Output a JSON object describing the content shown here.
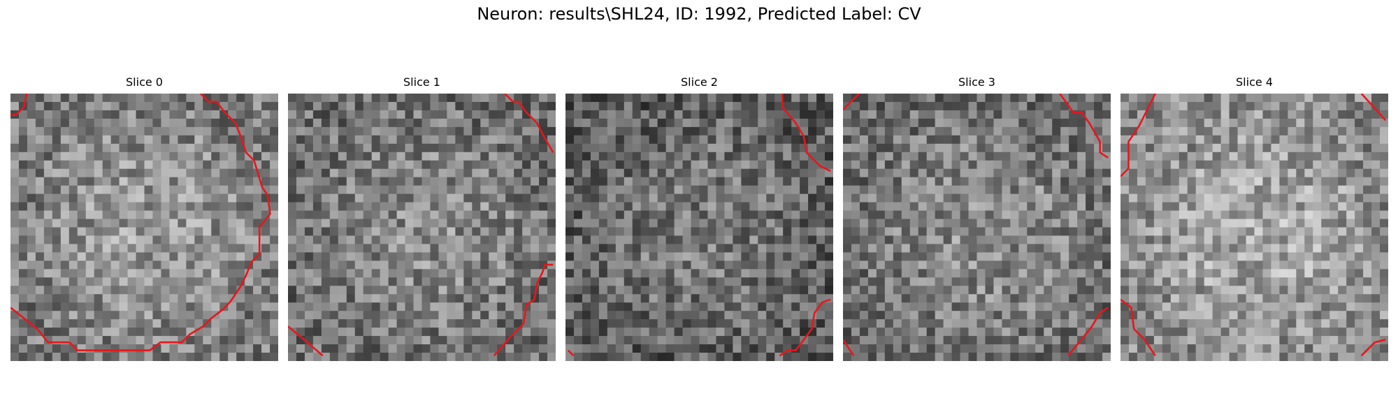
{
  "figure": {
    "title": "Neuron: results\\SHL24, ID: 1992, Predicted Label: CV"
  },
  "panels": [
    {
      "title": "Slice 0",
      "seed": 11,
      "base": 0.6,
      "contour": [
        [
          [
            0.0,
            0.08
          ],
          [
            0.02,
            0.08
          ],
          [
            0.05,
            0.05
          ],
          [
            0.06,
            0.0
          ]
        ],
        [
          [
            0.71,
            0.0
          ],
          [
            0.74,
            0.03
          ],
          [
            0.77,
            0.03
          ],
          [
            0.8,
            0.07
          ],
          [
            0.84,
            0.11
          ],
          [
            0.86,
            0.16
          ],
          [
            0.88,
            0.22
          ],
          [
            0.91,
            0.25
          ],
          [
            0.94,
            0.35
          ],
          [
            0.96,
            0.38
          ],
          [
            0.97,
            0.45
          ],
          [
            0.93,
            0.5
          ],
          [
            0.93,
            0.6
          ],
          [
            0.9,
            0.63
          ],
          [
            0.88,
            0.68
          ],
          [
            0.86,
            0.72
          ],
          [
            0.82,
            0.78
          ],
          [
            0.79,
            0.81
          ],
          [
            0.75,
            0.84
          ],
          [
            0.72,
            0.87
          ],
          [
            0.67,
            0.9
          ],
          [
            0.64,
            0.93
          ],
          [
            0.56,
            0.93
          ],
          [
            0.52,
            0.96
          ],
          [
            0.25,
            0.96
          ],
          [
            0.22,
            0.93
          ],
          [
            0.14,
            0.93
          ],
          [
            0.1,
            0.88
          ],
          [
            0.0,
            0.8
          ]
        ]
      ]
    },
    {
      "title": "Slice 1",
      "seed": 23,
      "base": 0.55,
      "contour": [
        [
          [
            0.81,
            0.0
          ],
          [
            0.84,
            0.03
          ],
          [
            0.86,
            0.03
          ],
          [
            0.89,
            0.07
          ],
          [
            0.93,
            0.11
          ],
          [
            0.95,
            0.15
          ],
          [
            0.99,
            0.22
          ]
        ],
        [
          [
            0.0,
            0.87
          ],
          [
            0.06,
            0.92
          ],
          [
            0.13,
            0.98
          ]
        ],
        [
          [
            0.77,
            0.98
          ],
          [
            0.83,
            0.91
          ],
          [
            0.88,
            0.86
          ],
          [
            0.89,
            0.79
          ],
          [
            0.92,
            0.77
          ],
          [
            0.93,
            0.71
          ],
          [
            0.95,
            0.67
          ],
          [
            0.96,
            0.64
          ],
          [
            0.99,
            0.64
          ]
        ]
      ]
    },
    {
      "title": "Slice 2",
      "seed": 37,
      "base": 0.48,
      "contour": [
        [
          [
            0.81,
            0.0
          ],
          [
            0.81,
            0.05
          ],
          [
            0.86,
            0.11
          ],
          [
            0.89,
            0.16
          ],
          [
            0.9,
            0.22
          ],
          [
            0.95,
            0.27
          ],
          [
            0.99,
            0.29
          ]
        ],
        [
          [
            0.01,
            0.96
          ],
          [
            0.03,
            0.98
          ]
        ],
        [
          [
            0.8,
            0.98
          ],
          [
            0.83,
            0.96
          ],
          [
            0.86,
            0.96
          ],
          [
            0.92,
            0.88
          ],
          [
            0.93,
            0.82
          ],
          [
            0.96,
            0.78
          ],
          [
            0.99,
            0.77
          ]
        ]
      ]
    },
    {
      "title": "Slice 3",
      "seed": 53,
      "base": 0.55,
      "contour": [
        [
          [
            0.0,
            0.06
          ],
          [
            0.06,
            0.0
          ]
        ],
        [
          [
            0.81,
            0.0
          ],
          [
            0.86,
            0.07
          ],
          [
            0.89,
            0.07
          ],
          [
            0.92,
            0.11
          ],
          [
            0.96,
            0.18
          ],
          [
            0.96,
            0.22
          ],
          [
            0.99,
            0.24
          ]
        ],
        [
          [
            0.0,
            0.92
          ],
          [
            0.04,
            0.98
          ]
        ],
        [
          [
            0.84,
            0.98
          ],
          [
            0.89,
            0.92
          ],
          [
            0.93,
            0.87
          ],
          [
            0.96,
            0.82
          ],
          [
            0.99,
            0.8
          ]
        ]
      ]
    },
    {
      "title": "Slice 4",
      "seed": 71,
      "base": 0.66,
      "contour": [
        [
          [
            0.0,
            0.31
          ],
          [
            0.03,
            0.28
          ],
          [
            0.03,
            0.18
          ],
          [
            0.07,
            0.12
          ],
          [
            0.1,
            0.06
          ],
          [
            0.13,
            0.0
          ]
        ],
        [
          [
            0.9,
            0.0
          ],
          [
            0.99,
            0.1
          ]
        ],
        [
          [
            0.0,
            0.77
          ],
          [
            0.04,
            0.8
          ],
          [
            0.05,
            0.88
          ],
          [
            0.09,
            0.92
          ],
          [
            0.13,
            0.98
          ]
        ],
        [
          [
            0.9,
            0.98
          ],
          [
            0.95,
            0.93
          ],
          [
            0.99,
            0.92
          ]
        ]
      ]
    }
  ]
}
